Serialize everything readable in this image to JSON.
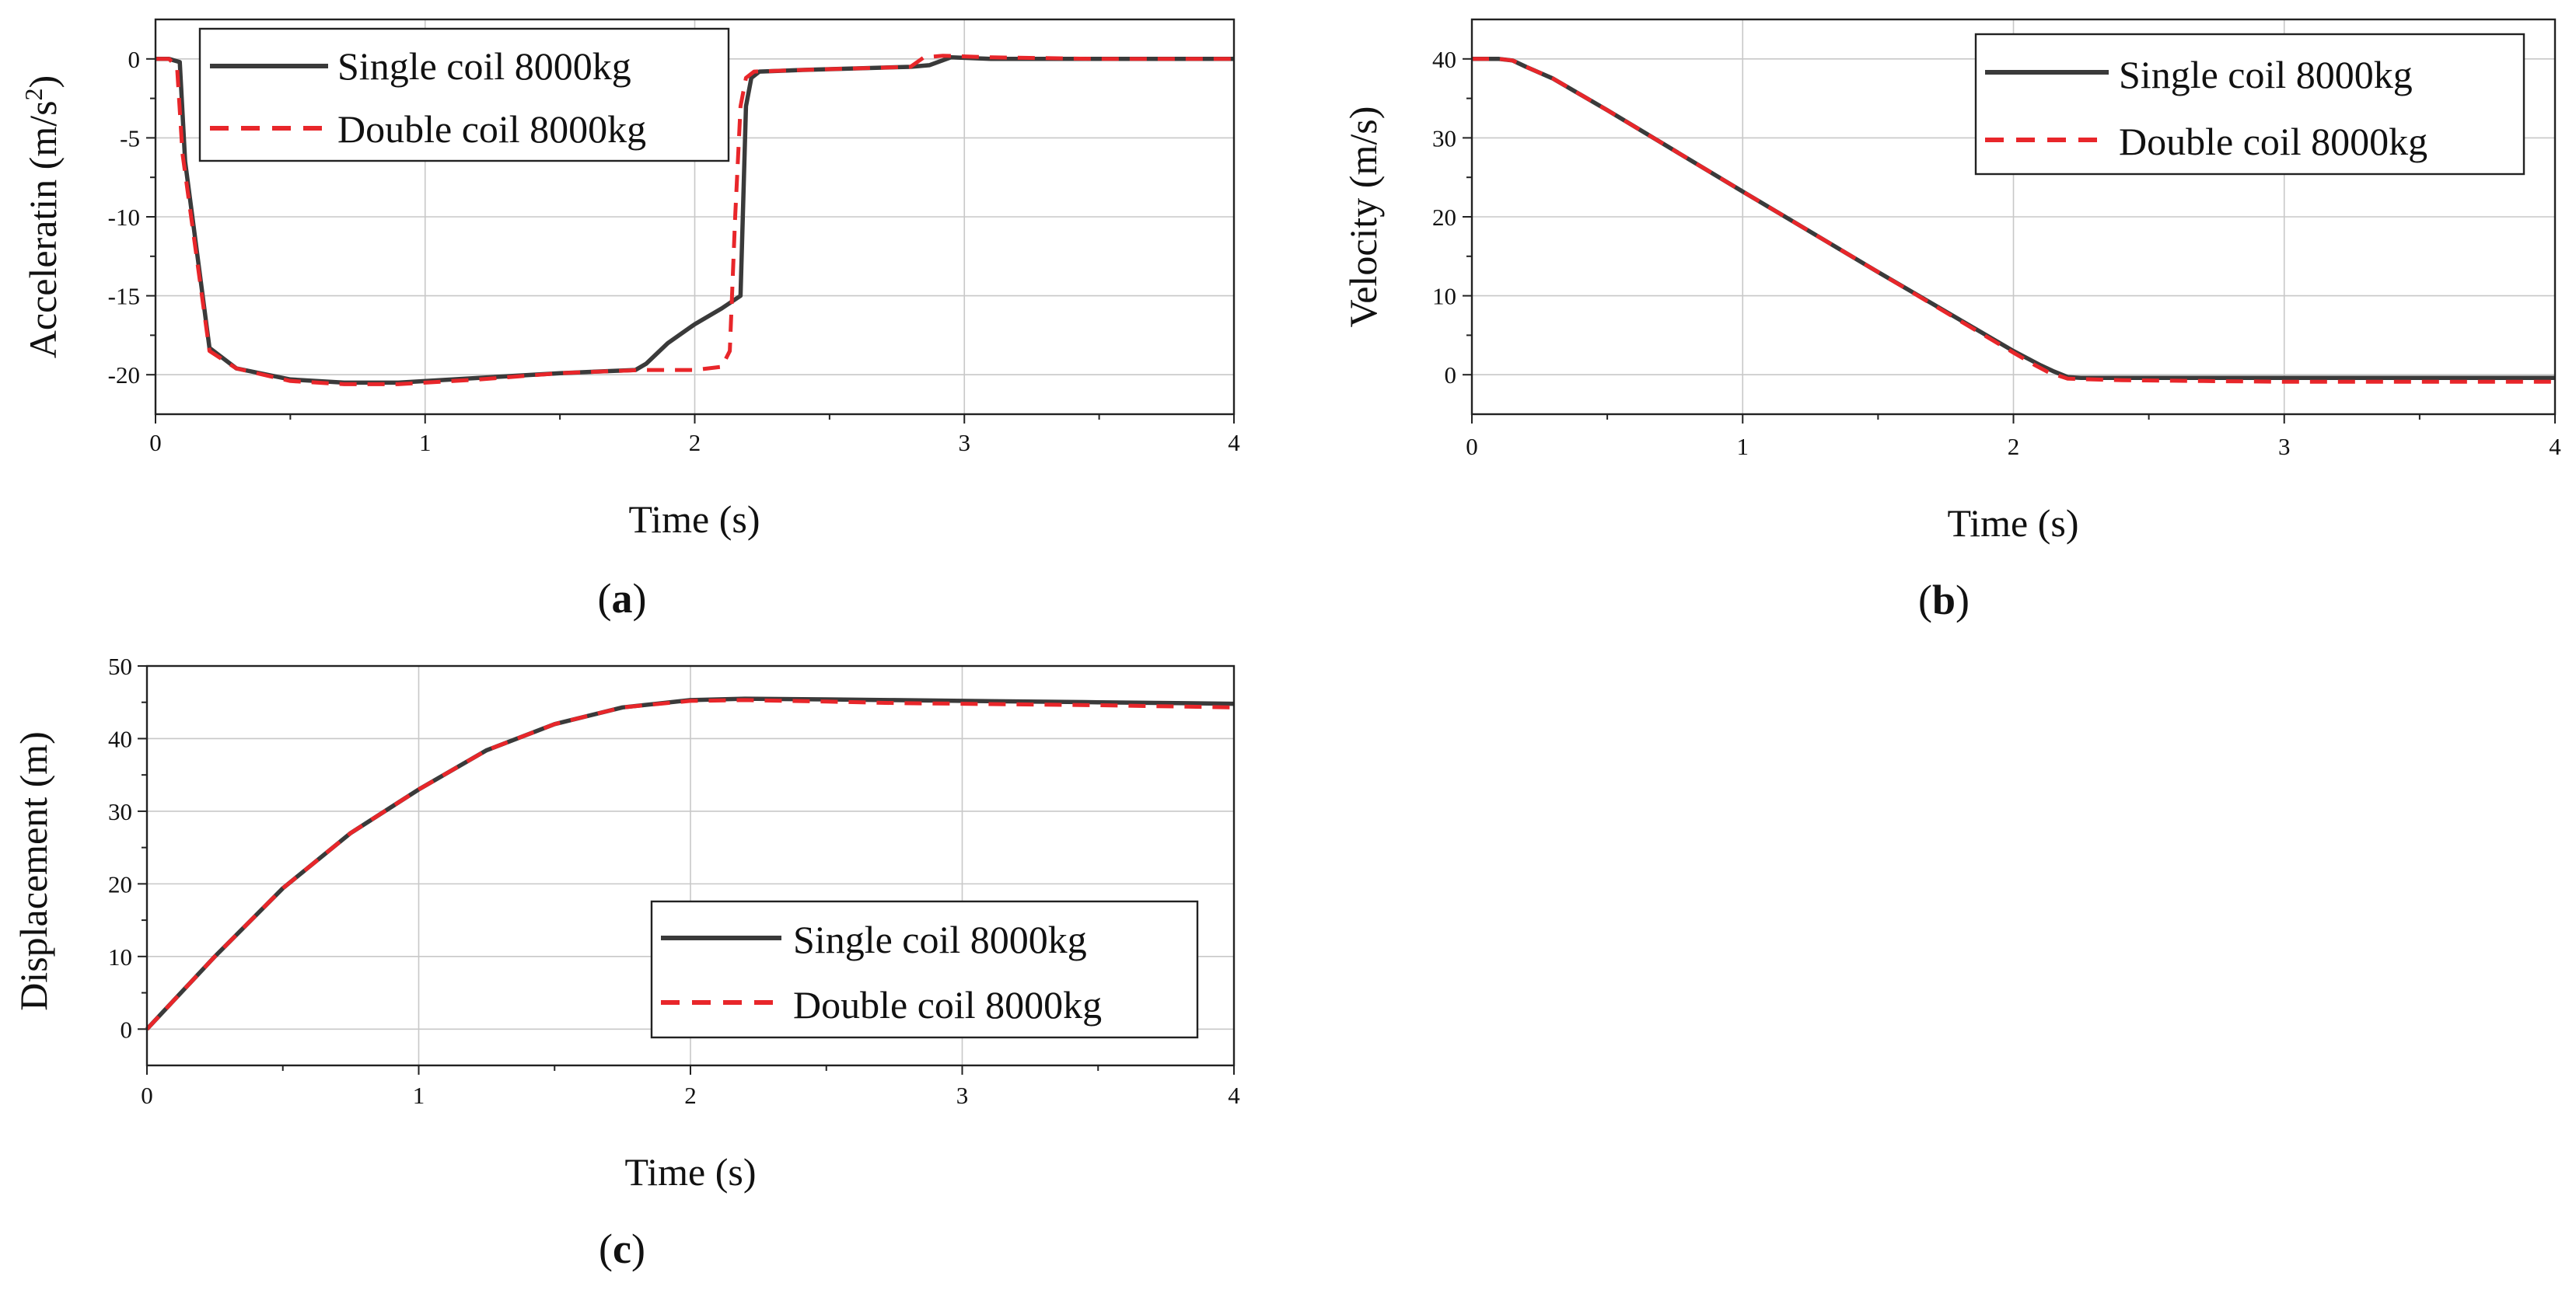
{
  "colors": {
    "single": "#3a3a3a",
    "double": "#e8262a"
  },
  "chart_data": [
    {
      "id": "a",
      "type": "line",
      "caption_letter": "a",
      "xlabel": "Time (s)",
      "ylabel_base": "Acceleratin (m/s",
      "ylabel_sup": "2",
      "ylabel_tail": ")",
      "xlim": [
        0,
        4
      ],
      "ylim": [
        -22.5,
        2.5
      ],
      "xticks": [
        0,
        1,
        2,
        3,
        4
      ],
      "yticks": [
        0,
        -5,
        -10,
        -15,
        -20
      ],
      "grid": true,
      "legend_position": "top-left",
      "legend": [
        "Single coil 8000kg",
        "Double coil 8000kg"
      ],
      "series": [
        {
          "name": "Single coil 8000kg",
          "style": "solid",
          "x": [
            0,
            0.05,
            0.09,
            0.11,
            0.2,
            0.3,
            0.5,
            0.7,
            0.9,
            1.2,
            1.5,
            1.78,
            1.82,
            1.9,
            2.0,
            2.1,
            2.17,
            2.19,
            2.21,
            2.24,
            2.4,
            2.6,
            2.8,
            2.87,
            2.95,
            3.1,
            3.5,
            4.0
          ],
          "y": [
            0,
            0,
            -0.2,
            -6.5,
            -18.3,
            -19.6,
            -20.3,
            -20.5,
            -20.5,
            -20.2,
            -19.9,
            -19.7,
            -19.3,
            -18.0,
            -16.8,
            -15.8,
            -15.0,
            -3.0,
            -1.2,
            -0.8,
            -0.7,
            -0.6,
            -0.5,
            -0.4,
            0.1,
            0.0,
            0.0,
            0.0
          ]
        },
        {
          "name": "Double coil 8000kg",
          "style": "dashed",
          "x": [
            0,
            0.05,
            0.08,
            0.1,
            0.2,
            0.3,
            0.5,
            0.7,
            0.9,
            1.2,
            1.5,
            1.8,
            2.0,
            2.1,
            2.13,
            2.15,
            2.17,
            2.19,
            2.22,
            2.4,
            2.6,
            2.8,
            2.85,
            2.92,
            3.1,
            3.5,
            4.0
          ],
          "y": [
            0,
            0,
            -0.5,
            -6.0,
            -18.5,
            -19.6,
            -20.4,
            -20.6,
            -20.6,
            -20.3,
            -19.9,
            -19.7,
            -19.7,
            -19.5,
            -18.5,
            -10.0,
            -3.0,
            -1.2,
            -0.8,
            -0.7,
            -0.6,
            -0.5,
            0.1,
            0.2,
            0.1,
            0.0,
            0.0
          ]
        }
      ]
    },
    {
      "id": "b",
      "type": "line",
      "caption_letter": "b",
      "xlabel": "Time (s)",
      "ylabel": "Velocity (m/s)",
      "xlim": [
        0,
        4
      ],
      "ylim": [
        -5,
        45
      ],
      "xticks": [
        0,
        1,
        2,
        3,
        4
      ],
      "yticks": [
        0,
        10,
        20,
        30,
        40
      ],
      "grid": true,
      "legend_position": "top-right",
      "legend": [
        "Single coil 8000kg",
        "Double coil 8000kg"
      ],
      "series": [
        {
          "name": "Single coil 8000kg",
          "style": "solid",
          "x": [
            0,
            0.1,
            0.15,
            0.2,
            0.3,
            0.5,
            1.0,
            1.5,
            2.0,
            2.1,
            2.15,
            2.2,
            2.25,
            2.5,
            3.0,
            4.0
          ],
          "y": [
            40,
            40,
            39.8,
            39.0,
            37.5,
            33.5,
            23.2,
            13.0,
            3.0,
            1.2,
            0.4,
            -0.3,
            -0.4,
            -0.4,
            -0.4,
            -0.4
          ]
        },
        {
          "name": "Double coil 8000kg",
          "style": "dashed",
          "x": [
            0,
            0.1,
            0.15,
            0.2,
            0.3,
            0.5,
            1.0,
            1.5,
            2.0,
            2.08,
            2.13,
            2.2,
            2.4,
            2.7,
            3.0,
            3.5,
            4.0
          ],
          "y": [
            40,
            40,
            39.8,
            39.0,
            37.5,
            33.5,
            23.2,
            13.0,
            2.8,
            1.2,
            0.3,
            -0.5,
            -0.7,
            -0.8,
            -0.9,
            -0.9,
            -0.9
          ]
        }
      ]
    },
    {
      "id": "c",
      "type": "line",
      "caption_letter": "c",
      "xlabel": "Time (s)",
      "ylabel": "Displacement (m)",
      "xlim": [
        0,
        4
      ],
      "ylim": [
        -5,
        50
      ],
      "xticks": [
        0,
        1,
        2,
        3,
        4
      ],
      "yticks": [
        0,
        10,
        20,
        30,
        40,
        50
      ],
      "grid": true,
      "legend_position": "bottom-right",
      "legend": [
        "Single coil 8000kg",
        "Double coil 8000kg"
      ],
      "series": [
        {
          "name": "Single coil 8000kg",
          "style": "solid",
          "x": [
            0,
            0.1,
            0.25,
            0.5,
            0.75,
            1.0,
            1.25,
            1.5,
            1.75,
            2.0,
            2.2,
            2.5,
            2.75,
            3.0,
            3.5,
            4.0
          ],
          "y": [
            0,
            4.0,
            10.0,
            19.4,
            27.0,
            33.0,
            38.4,
            42.0,
            44.3,
            45.3,
            45.5,
            45.4,
            45.3,
            45.2,
            45.0,
            44.8
          ]
        },
        {
          "name": "Double coil 8000kg",
          "style": "dashed",
          "x": [
            0,
            0.1,
            0.25,
            0.5,
            0.75,
            1.0,
            1.25,
            1.5,
            1.75,
            2.0,
            2.2,
            2.5,
            2.75,
            3.0,
            3.5,
            4.0
          ],
          "y": [
            0,
            4.0,
            10.0,
            19.4,
            27.0,
            33.0,
            38.4,
            42.0,
            44.3,
            45.2,
            45.3,
            45.1,
            44.9,
            44.8,
            44.6,
            44.3
          ]
        }
      ]
    }
  ]
}
